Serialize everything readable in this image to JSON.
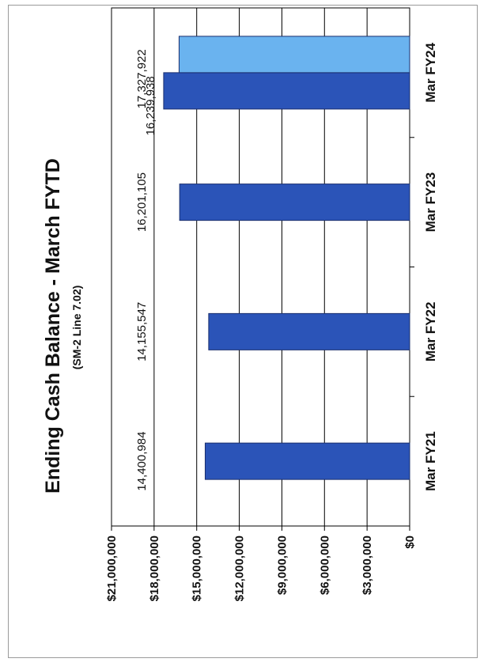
{
  "chart_data": {
    "type": "bar",
    "orientation": "rotated-90-clockwise",
    "title": "Ending Cash Balance - March FYTD",
    "subtitle": "(SM-2 Line 7.02)",
    "categories": [
      "Mar FY21",
      "Mar FY22",
      "Mar FY23",
      "Mar FY24"
    ],
    "series": [
      {
        "color": "#2b54b8",
        "values": [
          14400984,
          14155547,
          16201105,
          17327922
        ],
        "labels": [
          "14,400,984",
          "14,155,547",
          "16,201,105",
          "17,327,922"
        ]
      },
      {
        "color": "#6ab3ef",
        "values": [
          null,
          null,
          null,
          16239938
        ],
        "labels": [
          "",
          "",
          "",
          "16,239,938"
        ]
      }
    ],
    "ylim": [
      0,
      21000000
    ],
    "ticks": [
      0,
      3000000,
      6000000,
      9000000,
      12000000,
      15000000,
      18000000,
      21000000
    ],
    "tick_labels": [
      "$0",
      "$3,000,000",
      "$6,000,000",
      "$9,000,000",
      "$12,000,000",
      "$15,000,000",
      "$18,000,000",
      "$21,000,000"
    ],
    "grid": true,
    "legend": "none"
  }
}
